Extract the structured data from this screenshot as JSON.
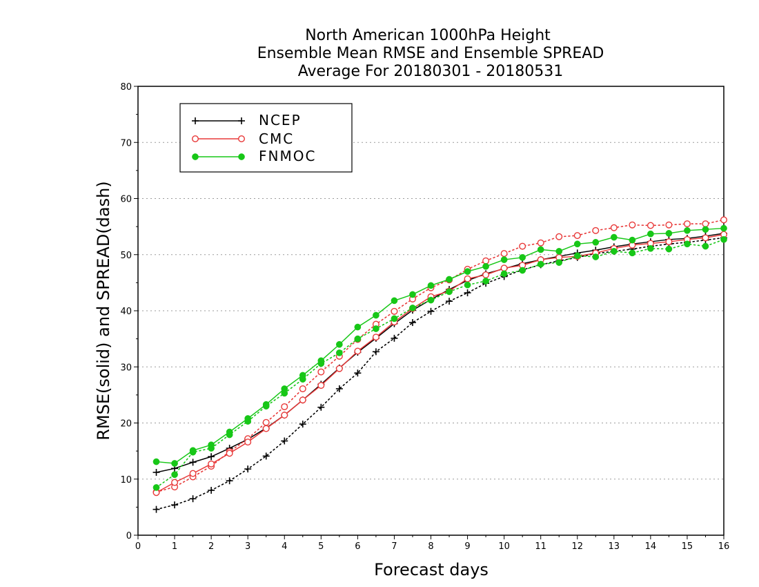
{
  "chart_data": {
    "type": "line",
    "title": [
      "North American 1000hPa Height",
      "Ensemble Mean RMSE and Ensemble SPREAD",
      "Average For 20180301 - 20180531"
    ],
    "xlabel": "Forecast days",
    "ylabel": "RMSE(solid) and SPREAD(dash)",
    "xlim": [
      0,
      16
    ],
    "ylim": [
      0,
      80
    ],
    "x_ticks": [
      "0",
      "1",
      "2",
      "3",
      "4",
      "5",
      "6",
      "7",
      "8",
      "9",
      "10",
      "11",
      "12",
      "13",
      "14",
      "15",
      "16"
    ],
    "y_ticks": [
      "0",
      "10",
      "20",
      "30",
      "40",
      "50",
      "60",
      "70",
      "80"
    ],
    "grid": "horizontal dotted",
    "legend_position": "top-left",
    "x": [
      0.5,
      1,
      1.5,
      2,
      2.5,
      3,
      3.5,
      4,
      4.5,
      5,
      5.5,
      6,
      6.5,
      7,
      7.5,
      8,
      8.5,
      9,
      9.5,
      10,
      10.5,
      11,
      11.5,
      12,
      12.5,
      13,
      13.5,
      14,
      14.5,
      15,
      15.5,
      16
    ],
    "series": [
      {
        "name": "NCEP",
        "color": "#000000",
        "marker": "plus",
        "rmse": [
          11.2,
          11.9,
          13.0,
          14.0,
          15.5,
          17.1,
          19.1,
          21.4,
          24.1,
          26.9,
          29.8,
          32.6,
          35.1,
          37.7,
          40.1,
          42.0,
          43.8,
          45.4,
          46.6,
          47.5,
          48.4,
          49.1,
          49.7,
          50.3,
          50.8,
          51.4,
          51.9,
          52.3,
          52.7,
          52.9,
          53.3,
          53.8
        ],
        "spread": [
          4.6,
          5.4,
          6.5,
          8.0,
          9.7,
          11.8,
          14.1,
          16.8,
          19.8,
          22.8,
          26.1,
          28.9,
          32.7,
          35.1,
          37.9,
          39.9,
          41.7,
          43.2,
          44.9,
          46.1,
          47.3,
          48.2,
          48.9,
          49.5,
          50.2,
          50.6,
          51.0,
          51.5,
          51.9,
          52.2,
          52.6,
          53.0
        ]
      },
      {
        "name": "CMC",
        "color": "#e83838",
        "marker": "open-circle",
        "rmse": [
          7.6,
          9.4,
          11.0,
          12.7,
          14.6,
          16.6,
          19.0,
          21.4,
          24.1,
          26.7,
          29.7,
          32.8,
          35.3,
          38.0,
          40.4,
          42.5,
          43.5,
          45.7,
          46.4,
          47.6,
          48.1,
          49.1,
          49.5,
          49.7,
          50.3,
          51.1,
          51.7,
          52.0,
          52.3,
          52.7,
          53.0,
          53.6
        ],
        "spread": [
          7.7,
          8.6,
          10.4,
          12.3,
          14.9,
          17.2,
          20.1,
          22.9,
          26.1,
          29.1,
          31.9,
          34.9,
          37.6,
          39.9,
          42.1,
          44.1,
          45.5,
          47.4,
          48.9,
          50.2,
          51.5,
          52.1,
          53.2,
          53.4,
          54.3,
          54.8,
          55.3,
          55.2,
          55.3,
          55.5,
          55.5,
          56.2
        ]
      },
      {
        "name": "FNMOC",
        "color": "#17c717",
        "marker": "filled-circle",
        "rmse": [
          13.1,
          12.8,
          15.1,
          16.1,
          18.4,
          20.8,
          23.3,
          26.1,
          28.5,
          31.1,
          34.0,
          37.1,
          39.2,
          41.8,
          42.9,
          44.5,
          45.6,
          47.0,
          47.9,
          49.1,
          49.5,
          50.9,
          50.6,
          51.9,
          52.2,
          53.1,
          52.6,
          53.7,
          53.8,
          54.3,
          54.5,
          54.7
        ],
        "spread": [
          8.5,
          10.8,
          14.8,
          15.5,
          17.9,
          20.3,
          23.0,
          25.3,
          27.8,
          30.6,
          32.5,
          35.0,
          36.8,
          38.6,
          40.5,
          41.9,
          43.4,
          44.6,
          45.3,
          46.6,
          47.2,
          48.3,
          48.6,
          49.8,
          49.6,
          50.6,
          50.3,
          51.1,
          51.0,
          51.9,
          51.5,
          52.7
        ]
      }
    ]
  }
}
